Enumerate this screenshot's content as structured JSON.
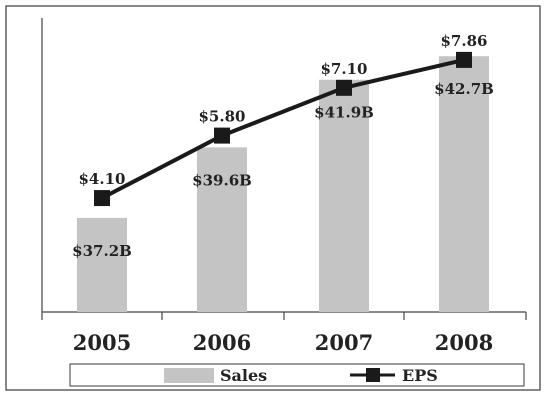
{
  "chart_data": {
    "type": "bar",
    "categories": [
      "2005",
      "2006",
      "2007",
      "2008"
    ],
    "series": [
      {
        "name": "Sales",
        "kind": "bar",
        "values": [
          37.2,
          39.6,
          41.9,
          42.7
        ],
        "labels": [
          "$37.2B",
          "$39.6B",
          "$41.9B",
          "$42.7B"
        ],
        "color": "#c4c4c4"
      },
      {
        "name": "EPS",
        "kind": "line",
        "values": [
          4.1,
          5.8,
          7.1,
          7.86
        ],
        "labels": [
          "$4.10",
          "$5.80",
          "$7.10",
          "$7.86"
        ],
        "color": "#1a1a1a",
        "marker": "square"
      }
    ],
    "bar_ylim": [
      34,
      44
    ],
    "line_ylim": [
      1,
      9
    ],
    "grid": false,
    "legend_position": "bottom"
  }
}
